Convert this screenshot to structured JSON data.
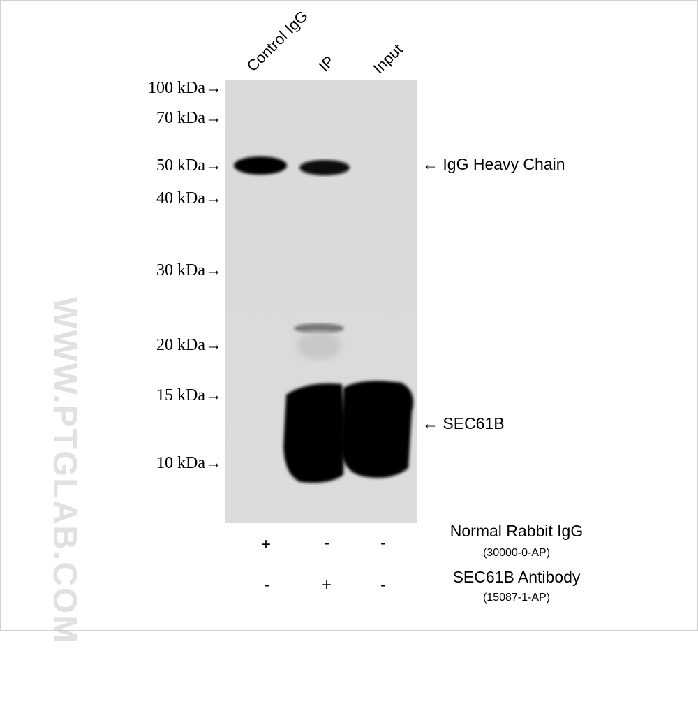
{
  "lanes": [
    "Control IgG",
    "IP",
    "Input"
  ],
  "markers": [
    "100 kDa→",
    "70 kDa→",
    "50 kDa→",
    "40 kDa→",
    "30 kDa→",
    "20 kDa→",
    "15 kDa→",
    "10 kDa→"
  ],
  "annotations": {
    "heavy_chain": "← IgG Heavy Chain",
    "target": "← SEC61B"
  },
  "watermark": "WWW.PTGLAB.COM",
  "conditions": [
    {
      "name": "Normal Rabbit IgG",
      "catalog": "(30000-0-AP)",
      "signs": [
        "+",
        "-",
        "-"
      ]
    },
    {
      "name": "SEC61B Antibody",
      "catalog": "(15087-1-AP)",
      "signs": [
        "-",
        "+",
        "-"
      ]
    }
  ]
}
